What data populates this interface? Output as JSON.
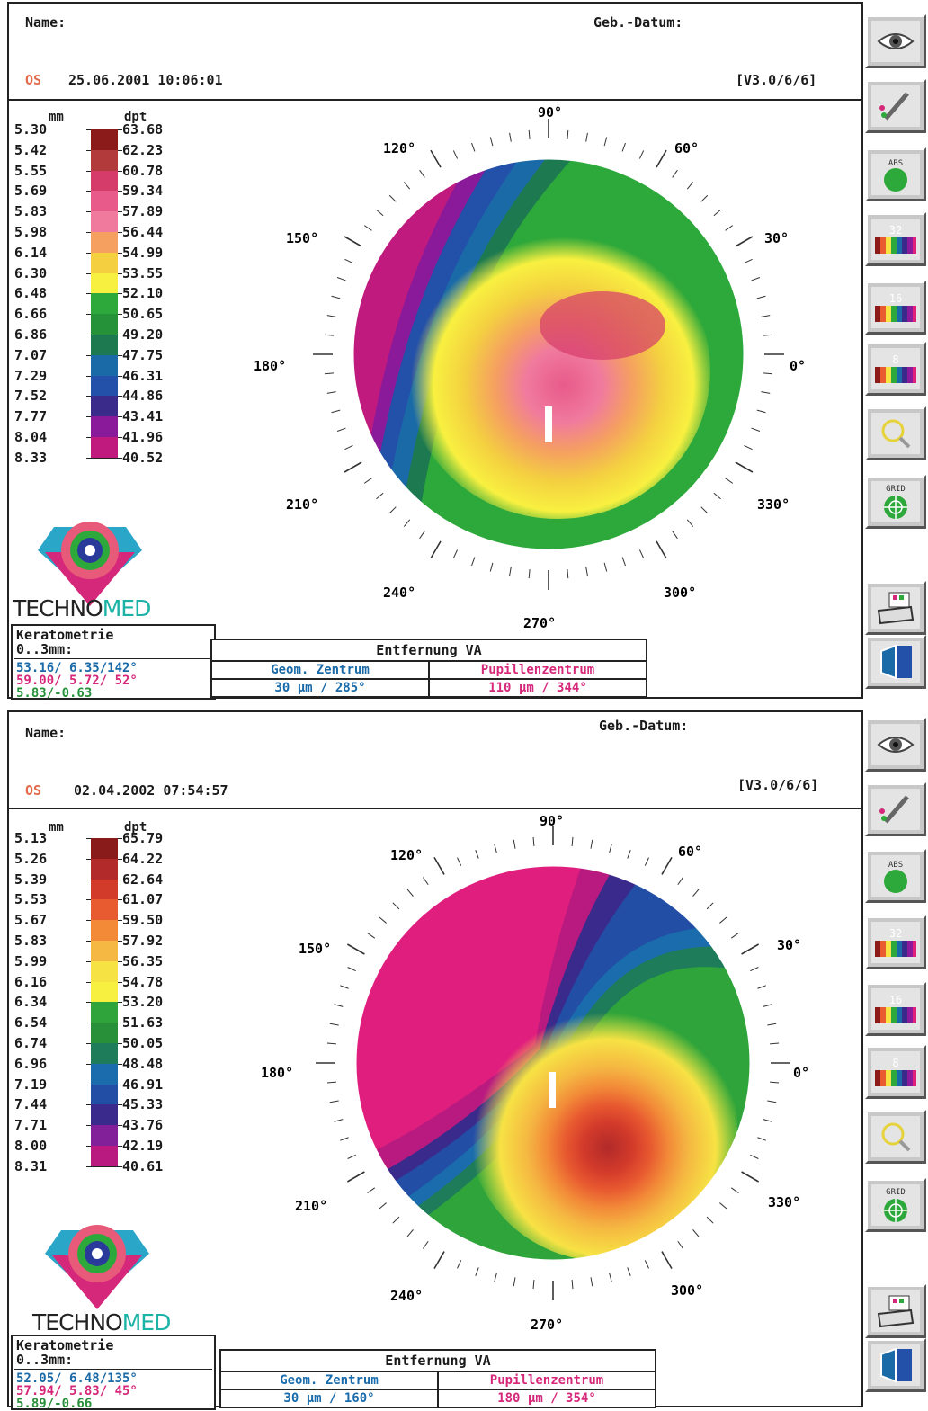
{
  "colors": {
    "scale_top": [
      "#8b1a1a",
      "#b23a3a",
      "#d63c6a",
      "#e85a8a",
      "#f07a9e",
      "#f5a060",
      "#f4d040",
      "#f8f040",
      "#2da83a",
      "#25923a",
      "#1d7a50",
      "#1a6aa8",
      "#2350a8",
      "#3a2a8a",
      "#8a1a9a",
      "#c01a7e",
      "#e0207a"
    ],
    "scale_bottom": [
      "#8a1b1b",
      "#b22a2a",
      "#d23a2a",
      "#e85a30",
      "#f28a38",
      "#f5b842",
      "#f7e244",
      "#f7f040",
      "#2ea43a",
      "#289038",
      "#1e7c5a",
      "#1a6cac",
      "#224ea6",
      "#3a2a8c",
      "#82209a",
      "#b81a80",
      "#e01e7e"
    ]
  },
  "panels": [
    {
      "name_label": "Name:",
      "dob_label": "Geb.-Datum:",
      "eye": "OS",
      "datetime": "25.06.2001 10:06:01",
      "version": "[V3.0/6/6]",
      "scale": {
        "mm_label": "mm",
        "dpt_label": "dpt",
        "mm": [
          "5.30",
          "5.42",
          "5.55",
          "5.69",
          "5.83",
          "5.98",
          "6.14",
          "6.30",
          "6.48",
          "6.66",
          "6.86",
          "7.07",
          "7.29",
          "7.52",
          "7.77",
          "8.04",
          "8.33"
        ],
        "dpt": [
          "63.68",
          "62.23",
          "60.78",
          "59.34",
          "57.89",
          "56.44",
          "54.99",
          "53.55",
          "52.10",
          "50.65",
          "49.20",
          "47.75",
          "46.31",
          "44.86",
          "43.41",
          "41.96",
          "40.52"
        ]
      },
      "angles": {
        "a90": "90°",
        "a120": "120°",
        "a60": "60°",
        "a150": "150°",
        "a30": "30°",
        "a180": "180°",
        "a0": "0°",
        "a210": "210°",
        "a330": "330°",
        "a240": "240°",
        "a300": "300°",
        "a270": "270°"
      },
      "brand": {
        "part1": "TECHNO",
        "part2": "MED"
      },
      "kerato": {
        "title1": "Keratometrie",
        "title2": "0..3mm:",
        "k1": "53.16/ 6.35/142°",
        "k2": "59.00/ 5.72/ 52°",
        "k3": " 5.83/-0.63"
      },
      "distance": {
        "title": "Entfernung VA",
        "geo_label": "Geom. Zentrum",
        "pupil_label": "Pupillenzentrum",
        "geo_value": "30 µm / 285°",
        "pupil_value": "110 µm / 344°"
      }
    },
    {
      "name_label": "Name:",
      "dob_label": "Geb.-Datum:",
      "eye": "OS",
      "datetime": "02.04.2002 07:54:57",
      "version": "[V3.0/6/6]",
      "scale": {
        "mm_label": "mm",
        "dpt_label": "dpt",
        "mm": [
          "5.13",
          "5.26",
          "5.39",
          "5.53",
          "5.67",
          "5.83",
          "5.99",
          "6.16",
          "6.34",
          "6.54",
          "6.74",
          "6.96",
          "7.19",
          "7.44",
          "7.71",
          "8.00",
          "8.31"
        ],
        "dpt": [
          "65.79",
          "64.22",
          "62.64",
          "61.07",
          "59.50",
          "57.92",
          "56.35",
          "54.78",
          "53.20",
          "51.63",
          "50.05",
          "48.48",
          "46.91",
          "45.33",
          "43.76",
          "42.19",
          "40.61"
        ]
      },
      "angles": {
        "a90": "90°",
        "a120": "120°",
        "a60": "60°",
        "a150": "150°",
        "a30": "30°",
        "a180": "180°",
        "a0": "0°",
        "a210": "210°",
        "a330": "330°",
        "a240": "240°",
        "a300": "300°",
        "a270": "270°"
      },
      "brand": {
        "part1": "TECHNO",
        "part2": "MED"
      },
      "kerato": {
        "title1": "Keratometrie",
        "title2": "0..3mm:",
        "k1": "52.05/ 6.48/135°",
        "k2": "57.94/ 5.83/ 45°",
        "k3": " 5.89/-0.66"
      },
      "distance": {
        "title": "Entfernung VA",
        "geo_label": "Geom. Zentrum",
        "pupil_label": "Pupillenzentrum",
        "geo_value": "30 µm / 160°",
        "pupil_value": "180 µm / 354°"
      }
    }
  ],
  "toolbar": {
    "buttons": [
      {
        "icon": "eye-icon"
      },
      {
        "icon": "pen-icon"
      },
      {
        "icon": "abs-icon",
        "label": "ABS"
      },
      {
        "icon": "scale-colors-icon",
        "label": "32"
      },
      {
        "icon": "scale-colors-icon",
        "label": "16"
      },
      {
        "icon": "scale-colors-icon",
        "label": "8"
      },
      {
        "icon": "zoom-icon"
      },
      {
        "icon": "grid-icon",
        "label": "GRID"
      },
      {
        "icon": "print-icon"
      },
      {
        "icon": "exit-icon"
      }
    ]
  }
}
